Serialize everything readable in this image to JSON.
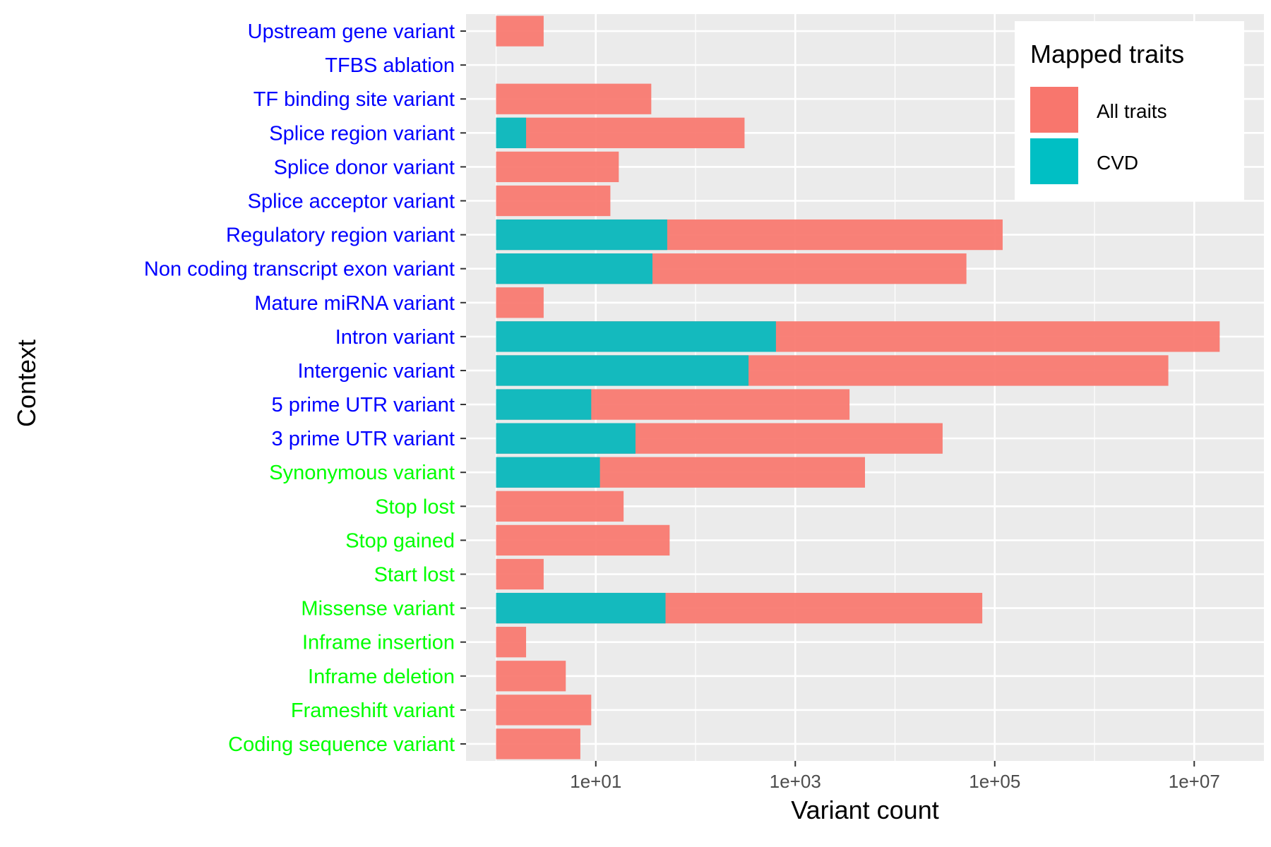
{
  "chart_data": {
    "type": "bar",
    "orientation": "horizontal",
    "xlabel": "Variant count",
    "ylabel": "Context",
    "x_scale": "log10",
    "xlim": [
      0.5,
      50000000
    ],
    "x_ticks": [
      10,
      1000,
      100000,
      10000000
    ],
    "x_tick_labels": [
      "1e+01",
      "1e+03",
      "1e+05",
      "1e+07"
    ],
    "grid": true,
    "legend": {
      "title": "Mapped traits",
      "position": "top-right",
      "entries": [
        "All traits",
        "CVD"
      ]
    },
    "colors": {
      "All traits": "#F8766D",
      "CVD": "#00BFC4",
      "label_noncoding": "#0000FF",
      "label_coding": "#00FF00"
    },
    "categories": [
      "Upstream gene variant",
      "TFBS ablation",
      "TF binding site variant",
      "Splice region variant",
      "Splice donor variant",
      "Splice acceptor variant",
      "Regulatory region variant",
      "Non coding transcript exon variant",
      "Mature miRNA variant",
      "Intron variant",
      "Intergenic variant",
      "5 prime UTR variant",
      "3 prime UTR variant",
      "Synonymous variant",
      "Stop lost",
      "Stop gained",
      "Start lost",
      "Missense variant",
      "Inframe insertion",
      "Inframe deletion",
      "Frameshift variant",
      "Coding sequence variant"
    ],
    "category_group": [
      "noncoding",
      "noncoding",
      "noncoding",
      "noncoding",
      "noncoding",
      "noncoding",
      "noncoding",
      "noncoding",
      "noncoding",
      "noncoding",
      "noncoding",
      "noncoding",
      "noncoding",
      "coding",
      "coding",
      "coding",
      "coding",
      "coding",
      "coding",
      "coding",
      "coding",
      "coding"
    ],
    "series": [
      {
        "name": "All traits",
        "values": [
          3,
          null,
          36,
          310,
          17,
          14,
          120000,
          52000,
          3,
          18000000,
          5500000,
          3500,
          30000,
          5000,
          19,
          55,
          3,
          75000,
          2,
          5,
          9,
          7
        ]
      },
      {
        "name": "CVD",
        "values": [
          null,
          null,
          null,
          2,
          null,
          null,
          52,
          37,
          null,
          640,
          340,
          9,
          25,
          11,
          null,
          null,
          null,
          50,
          null,
          null,
          null,
          null
        ]
      }
    ]
  }
}
